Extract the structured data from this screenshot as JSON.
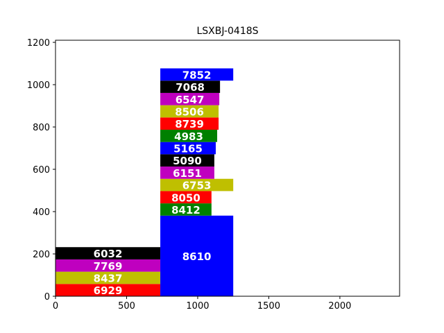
{
  "chart_data": {
    "type": "bar",
    "title": "LSXBJ-0418S",
    "xlabel": "",
    "ylabel": "",
    "xlim": [
      0,
      2420
    ],
    "ylim": [
      0,
      1210
    ],
    "x_ticks": [
      "0",
      "500",
      "1000",
      "1500",
      "2000"
    ],
    "y_ticks": [
      "0",
      "200",
      "400",
      "600",
      "800",
      "1000",
      "1200"
    ],
    "grid": false,
    "bars": [
      {
        "x0": 0,
        "x1": 737,
        "y0": 0,
        "y1": 58,
        "label": "6929",
        "color": "#ff0000"
      },
      {
        "x0": 0,
        "x1": 737,
        "y0": 58,
        "y1": 116,
        "label": "8437",
        "color": "#bfbf00"
      },
      {
        "x0": 0,
        "x1": 737,
        "y0": 116,
        "y1": 174,
        "label": "7769",
        "color": "#bf00bf"
      },
      {
        "x0": 0,
        "x1": 737,
        "y0": 174,
        "y1": 232,
        "label": "6032",
        "color": "#000000"
      },
      {
        "x0": 737,
        "x1": 1250,
        "y0": 0,
        "y1": 381,
        "label": "8610",
        "color": "#0000ff"
      },
      {
        "x0": 737,
        "x1": 1097,
        "y0": 381,
        "y1": 439,
        "label": "8412",
        "color": "#008000"
      },
      {
        "x0": 737,
        "x1": 1097,
        "y0": 439,
        "y1": 497,
        "label": "8050",
        "color": "#ff0000"
      },
      {
        "x0": 737,
        "x1": 1250,
        "y0": 497,
        "y1": 555,
        "label": "6753",
        "color": "#bfbf00"
      },
      {
        "x0": 737,
        "x1": 1117,
        "y0": 555,
        "y1": 613,
        "label": "6151",
        "color": "#bf00bf"
      },
      {
        "x0": 737,
        "x1": 1117,
        "y0": 613,
        "y1": 671,
        "label": "5090",
        "color": "#000000"
      },
      {
        "x0": 737,
        "x1": 1127,
        "y0": 671,
        "y1": 729,
        "label": "5165",
        "color": "#0000ff"
      },
      {
        "x0": 737,
        "x1": 1137,
        "y0": 729,
        "y1": 787,
        "label": "4983",
        "color": "#008000"
      },
      {
        "x0": 737,
        "x1": 1147,
        "y0": 787,
        "y1": 845,
        "label": "8739",
        "color": "#ff0000"
      },
      {
        "x0": 737,
        "x1": 1147,
        "y0": 845,
        "y1": 903,
        "label": "8506",
        "color": "#bfbf00"
      },
      {
        "x0": 737,
        "x1": 1152,
        "y0": 903,
        "y1": 961,
        "label": "6547",
        "color": "#bf00bf"
      },
      {
        "x0": 737,
        "x1": 1157,
        "y0": 961,
        "y1": 1019,
        "label": "7068",
        "color": "#000000"
      },
      {
        "x0": 737,
        "x1": 1250,
        "y0": 1019,
        "y1": 1077,
        "label": "7852",
        "color": "#0000ff"
      }
    ]
  }
}
